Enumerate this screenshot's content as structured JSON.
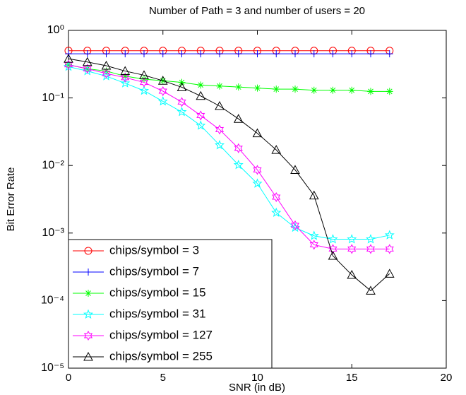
{
  "chart_data": {
    "type": "line",
    "title": "Number of Path = 3 and number of users = 20",
    "xlabel": "SNR (in dB)",
    "ylabel": "Bit Error Rate",
    "x": [
      0,
      1,
      2,
      3,
      4,
      5,
      6,
      7,
      8,
      9,
      10,
      11,
      12,
      13,
      14,
      15,
      16,
      17
    ],
    "xlim": [
      0,
      20
    ],
    "xticks": [
      0,
      5,
      10,
      15,
      20
    ],
    "ylim": [
      1e-05,
      1
    ],
    "yscale": "log",
    "yticks": [
      {
        "value": 1,
        "label": "10⁰"
      },
      {
        "value": 0.1,
        "label": "10⁻¹"
      },
      {
        "value": 0.01,
        "label": "10⁻²"
      },
      {
        "value": 0.001,
        "label": "10⁻³"
      },
      {
        "value": 0.0001,
        "label": "10⁻⁴"
      },
      {
        "value": 1e-05,
        "label": "10⁻⁵"
      }
    ],
    "grid": false,
    "legend": "lower left",
    "series": [
      {
        "name": "chips/symbol = 3",
        "color": "#ff0000",
        "marker": "circle",
        "values": [
          0.5,
          0.5,
          0.5,
          0.5,
          0.5,
          0.5,
          0.5,
          0.5,
          0.5,
          0.5,
          0.5,
          0.5,
          0.5,
          0.5,
          0.5,
          0.5,
          0.5,
          0.5
        ]
      },
      {
        "name": "chips/symbol = 7",
        "color": "#0000ff",
        "marker": "plus",
        "values": [
          0.45,
          0.45,
          0.45,
          0.45,
          0.45,
          0.45,
          0.45,
          0.45,
          0.45,
          0.45,
          0.45,
          0.45,
          0.45,
          0.45,
          0.45,
          0.45,
          0.45,
          0.45
        ]
      },
      {
        "name": "chips/symbol = 15",
        "color": "#00ff00",
        "marker": "asterisk",
        "values": [
          0.31,
          0.27,
          0.25,
          0.21,
          0.19,
          0.18,
          0.17,
          0.155,
          0.15,
          0.145,
          0.14,
          0.135,
          0.135,
          0.13,
          0.13,
          0.13,
          0.125,
          0.125
        ]
      },
      {
        "name": "chips/symbol = 31",
        "color": "#00ffff",
        "marker": "star",
        "values": [
          0.29,
          0.25,
          0.21,
          0.165,
          0.128,
          0.089,
          0.062,
          0.039,
          0.02,
          0.0102,
          0.0054,
          0.002,
          0.0012,
          0.00091,
          0.00081,
          0.00081,
          0.00081,
          0.00093
        ]
      },
      {
        "name": "chips/symbol = 127",
        "color": "#ff00ff",
        "marker": "hexagram",
        "values": [
          0.31,
          0.27,
          0.23,
          0.2,
          0.17,
          0.126,
          0.087,
          0.055,
          0.034,
          0.018,
          0.0086,
          0.0034,
          0.0013,
          0.00067,
          0.00058,
          0.00058,
          0.00058,
          0.00058
        ]
      },
      {
        "name": "chips/symbol = 255",
        "color": "#000000",
        "marker": "triangle",
        "values": [
          0.38,
          0.34,
          0.3,
          0.25,
          0.217,
          0.18,
          0.144,
          0.107,
          0.076,
          0.049,
          0.03,
          0.017,
          0.0086,
          0.0036,
          0.00046,
          0.00024,
          0.00014,
          0.00025
        ]
      }
    ]
  }
}
